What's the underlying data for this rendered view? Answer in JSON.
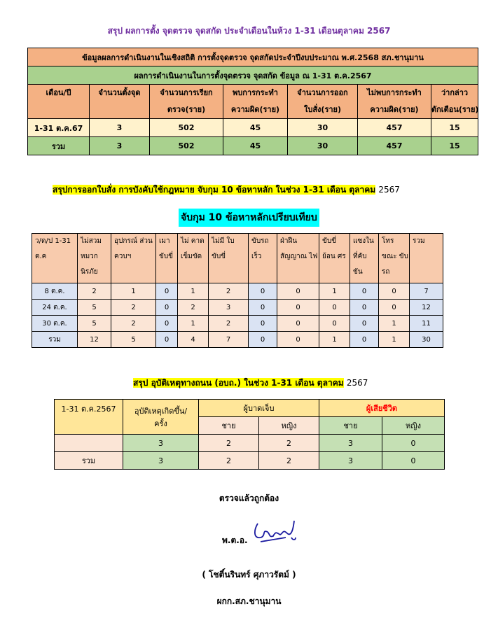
{
  "title": "สรุป ผลการตั้ง จุดตรวจ จุดสกัด ประจำเดือนในห้วง  1-31 เดือนตุลาคม 2567",
  "table1": {
    "header1": "ข้อมูลผลการดำเนินงานในเชิงสถิติ การตั้งจุดตรวจ จุดสกัดประจำปีงบประมาณ พ.ศ.2568 สภ.ชานุมาน",
    "header2": "ผลการดำเนินงานในการตั้งจุดตรวจ จุดสกัด ข้อมูล ณ 1-31 ต.ค.2567",
    "columns": [
      [
        "เดือน/ปี",
        ""
      ],
      [
        "จำนวนตั้งจุด",
        ""
      ],
      [
        "จำนวนการเรียก",
        "ตรวจ(ราย)"
      ],
      [
        "พบการกระทำ",
        "ความผิด(ราย)"
      ],
      [
        "จำนวนการออก",
        "ใบสั่ง(ราย)"
      ],
      [
        "ไม่พบการกระทำ",
        "ความผิด(ราย)"
      ],
      [
        "ว่ากล่าว",
        "ตักเตือน(ราย)"
      ]
    ],
    "rows": [
      [
        "1-31 ต.ค.67",
        "3",
        "502",
        "45",
        "30",
        "457",
        "15"
      ]
    ],
    "total": [
      "รวม",
      "3",
      "502",
      "45",
      "30",
      "457",
      "15"
    ]
  },
  "section2": {
    "heading": "สรุปการออกใบสั่ง การบังคับใช้กฎหมาย จับกุม 10 ข้อหาหลัก ในช่วง 1-31 เดือน ตุลาคม",
    "heading_year": "2567",
    "subheading": "จับกุม  10 ข้อหาหลักเปรียบเทียบ"
  },
  "table2": {
    "columns": [
      "ว/ด/ป 1-31 ต.ค",
      "ไม่สวม หมวก นิรภัย",
      "อุปกรณ์ ส่วนควบฯ",
      "เมา ขับขี่",
      "ไม่ คาด เข็มขัด",
      "ไม่มี ใบขับขี่",
      "ขับรถ เร็ว",
      "ฝ่าฝืน สัญญาณ ไฟ",
      "ขับขี่ ย้อน ศร",
      "แซงใน ที่คับ ขัน",
      "โทร ขณะ ขับรถ",
      "รวม"
    ],
    "rows": [
      [
        "8 ต.ค.",
        "2",
        "1",
        "0",
        "1",
        "2",
        "0",
        "0",
        "1",
        "0",
        "0",
        "7"
      ],
      [
        "24 ต.ค.",
        "5",
        "2",
        "0",
        "2",
        "3",
        "0",
        "0",
        "0",
        "0",
        "0",
        "12"
      ],
      [
        "30  ต.ค.",
        "5",
        "2",
        "0",
        "1",
        "2",
        "0",
        "0",
        "0",
        "0",
        "1",
        "11"
      ],
      [
        "รวม",
        "12",
        "5",
        "0",
        "4",
        "7",
        "0",
        "0",
        "1",
        "0",
        "1",
        "30"
      ]
    ]
  },
  "section3": {
    "heading": "สรุป อุบัติเหตุทางถนน (อบถ.) ในช่วง 1-31 เดือน ตุลาคม",
    "heading_year": "2567"
  },
  "table3": {
    "period": "1-31 ต.ค.2567",
    "accidents": "อุบัติเหตุเกิดขึ้น/ครั้ง",
    "injured": "ผู้บาดเจ็บ",
    "dead": "ผู้เสียชีวิต",
    "male": "ชาย",
    "female": "หญิง",
    "rows": [
      [
        "",
        "3",
        "2",
        "2",
        "3",
        "0"
      ],
      [
        "รวม",
        "3",
        "2",
        "2",
        "3",
        "0"
      ]
    ]
  },
  "signature": {
    "verified": "ตรวจแล้วถูกต้อง",
    "rank": "พ.ต.อ.",
    "name": "( โชติ์นรินทร์ ศุภาวรัตม์ )",
    "position": "ผกก.สภ.ชานุมาน",
    "signature_text": "โชติ์นรินทร์"
  },
  "colors": {
    "title": "#7030A0",
    "orange": "#F4B183",
    "green": "#A9D18E",
    "highlight": "#FFFF00",
    "cyan": "#00FFFF",
    "red": "#FF0000"
  }
}
